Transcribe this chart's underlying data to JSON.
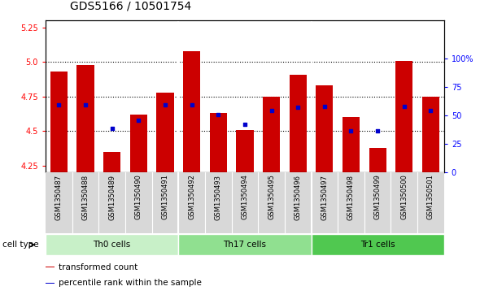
{
  "title": "GDS5166 / 10501754",
  "samples": [
    "GSM1350487",
    "GSM1350488",
    "GSM1350489",
    "GSM1350490",
    "GSM1350491",
    "GSM1350492",
    "GSM1350493",
    "GSM1350494",
    "GSM1350495",
    "GSM1350496",
    "GSM1350497",
    "GSM1350498",
    "GSM1350499",
    "GSM1350500",
    "GSM1350501"
  ],
  "red_values": [
    4.93,
    4.98,
    4.35,
    4.62,
    4.78,
    5.08,
    4.63,
    4.51,
    4.75,
    4.91,
    4.83,
    4.6,
    4.38,
    5.01,
    4.75
  ],
  "blue_values": [
    44,
    44,
    27,
    33,
    44,
    44,
    37,
    30,
    40,
    42,
    43,
    25,
    25,
    43,
    40
  ],
  "cell_types": [
    {
      "label": "Th0 cells",
      "start": 0,
      "end": 5,
      "color": "#c8f0c8"
    },
    {
      "label": "Th17 cells",
      "start": 5,
      "end": 10,
      "color": "#90e090"
    },
    {
      "label": "Tr1 cells",
      "start": 10,
      "end": 15,
      "color": "#50c850"
    }
  ],
  "ylim": [
    4.2,
    5.3
  ],
  "yticks": [
    4.25,
    4.5,
    4.75,
    5.0,
    5.25
  ],
  "y2lim": [
    0,
    133.33
  ],
  "y2ticks": [
    0,
    25,
    50,
    75,
    100
  ],
  "y2ticklabels": [
    "0",
    "25",
    "50",
    "75",
    "100%"
  ],
  "bar_color": "#cc0000",
  "dot_color": "#0000cc",
  "bar_bottom": 4.2,
  "legend_items": [
    {
      "color": "#cc0000",
      "label": "transformed count"
    },
    {
      "color": "#0000cc",
      "label": "percentile rank within the sample"
    }
  ],
  "bg_color": "#d8d8d8",
  "plot_bg": "#ffffff",
  "cell_type_label": "cell type",
  "cell_type_colors": [
    "#c8f0c8",
    "#90e090",
    "#50c850"
  ],
  "title_fontsize": 10,
  "tick_fontsize": 7,
  "label_fontsize": 7.5
}
